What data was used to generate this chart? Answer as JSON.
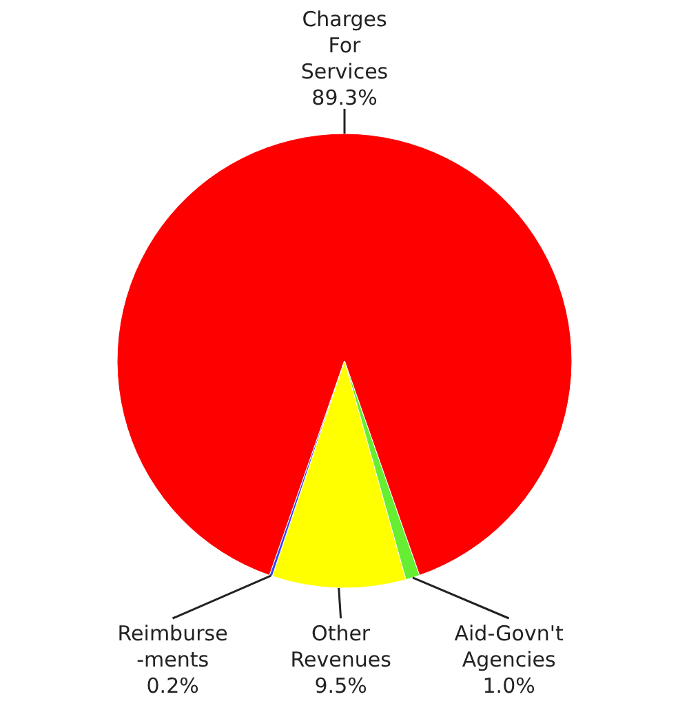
{
  "chart_data": {
    "type": "pie",
    "categories": [
      "Charges\nFor\nServices",
      "Aid-Govn't\nAgencies",
      "Other\nRevenues",
      "Reimburse\n-ments"
    ],
    "values": [
      89.3,
      1.0,
      9.5,
      0.2
    ],
    "value_labels": [
      "89.3%",
      "1.0%",
      "9.5%",
      "0.2%"
    ],
    "colors": [
      "#ff0000",
      "#66ee33",
      "#ffff00",
      "#3344ff"
    ]
  }
}
